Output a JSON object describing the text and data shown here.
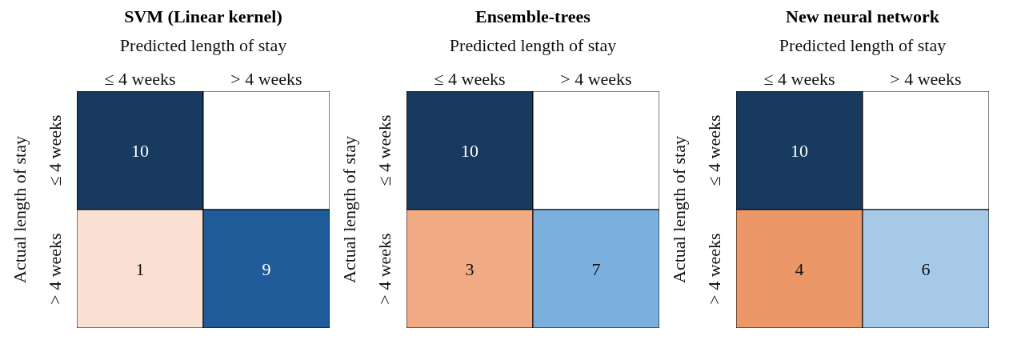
{
  "chart_data": [
    {
      "type": "heatmap",
      "title": "SVM (Linear kernel)",
      "xlabel": "Predicted length of stay",
      "ylabel": "Actual length of stay",
      "categories": [
        "≤ 4 weeks",
        "> 4 weeks"
      ],
      "y_categories": [
        "≤ 4 weeks",
        "> 4 weeks"
      ],
      "cells": [
        [
          10,
          null
        ],
        [
          1,
          9
        ]
      ],
      "data_labels": true
    },
    {
      "type": "heatmap",
      "title": "Ensemble-trees",
      "xlabel": "Predicted length of stay",
      "ylabel": "Actual length of stay",
      "categories": [
        "≤ 4 weeks",
        "> 4 weeks"
      ],
      "y_categories": [
        "≤ 4 weeks",
        "> 4 weeks"
      ],
      "cells": [
        [
          10,
          null
        ],
        [
          3,
          7
        ]
      ],
      "data_labels": true
    },
    {
      "type": "heatmap",
      "title": "New neural network",
      "xlabel": "Predicted length of stay",
      "ylabel": "Actual length of stay",
      "categories": [
        "≤ 4 weeks",
        "> 4 weeks"
      ],
      "y_categories": [
        "≤ 4 weeks",
        "> 4 weeks"
      ],
      "cells": [
        [
          10,
          null
        ],
        [
          4,
          6
        ]
      ],
      "data_labels": true
    }
  ]
}
